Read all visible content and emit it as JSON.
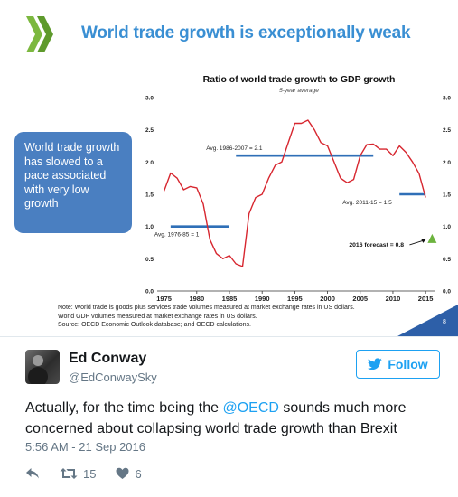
{
  "slide": {
    "title": "World trade growth is exceptionally weak",
    "callout": "World trade growth has slowed to a pace associated with very low growth",
    "notes": [
      "Note: World trade is goods plus services trade volumes measured at market exchange rates in US dollars.",
      "World GDP volumes measured at market exchange rates in US dollars.",
      "Source: OECD Economic Outlook database; and OECD calculations."
    ],
    "page_number": "8",
    "colors": {
      "title": "#3a8fd3",
      "callout": "#4a7fc1",
      "logo": "#7cb83f",
      "line": "#d7262f",
      "avg": "#2f6fb7",
      "forecast": "#6cb33e"
    }
  },
  "chart_data": {
    "type": "line",
    "title": "Ratio of world trade growth to GDP growth",
    "subtitle": "5-year average",
    "x_ticks": [
      "1975",
      "1980",
      "1985",
      "1990",
      "1995",
      "2000",
      "2005",
      "2010",
      "2015"
    ],
    "y_ticks_left": [
      "0.0",
      "0.5",
      "1.0",
      "1.5",
      "2.0",
      "2.5",
      "3.0"
    ],
    "y_ticks_right": [
      "0.0",
      "0.5",
      "1.0",
      "1.5",
      "2.0",
      "2.5",
      "3.0"
    ],
    "xlim": [
      1974.5,
      2016.5
    ],
    "ylim": [
      0,
      3.0
    ],
    "grid": false,
    "series": [
      {
        "name": "",
        "x": [
          1975,
          1976,
          1977,
          1978,
          1979,
          1980,
          1981,
          1982,
          1983,
          1984,
          1985,
          1986,
          1987,
          1988,
          1989,
          1990,
          1991,
          1992,
          1993,
          1994,
          1995,
          1996,
          1997,
          1998,
          1999,
          2000,
          2001,
          2002,
          2003,
          2004,
          2005,
          2006,
          2007,
          2008,
          2009,
          2010,
          2011,
          2012,
          2013,
          2014,
          2015
        ],
        "y": [
          1.55,
          1.83,
          1.75,
          1.57,
          1.62,
          1.6,
          1.35,
          0.8,
          0.58,
          0.5,
          0.55,
          0.42,
          0.38,
          1.2,
          1.45,
          1.5,
          1.75,
          1.95,
          2.0,
          2.3,
          2.6,
          2.6,
          2.65,
          2.5,
          2.3,
          2.25,
          2.0,
          1.75,
          1.68,
          1.73,
          2.1,
          2.27,
          2.28,
          2.2,
          2.2,
          2.1,
          2.25,
          2.15,
          2.0,
          1.82,
          1.45
        ]
      }
    ],
    "averages": [
      {
        "label": "Avg. 1976-85 = 1",
        "from": 1976,
        "to": 1985,
        "value": 1.0
      },
      {
        "label": "Avg. 1986-2007 = 2.1",
        "from": 1986,
        "to": 2007,
        "value": 2.1
      },
      {
        "label": "Avg. 2011-15 = 1.5",
        "from": 2011,
        "to": 2015,
        "value": 1.5
      }
    ],
    "forecast": {
      "label": "2016 forecast = 0.8",
      "x": 2016,
      "y": 0.8
    }
  },
  "tweet": {
    "display_name": "Ed Conway",
    "handle": "@EdConwaySky",
    "follow_label": "Follow",
    "text_before": "Actually, for the time being the ",
    "mention": "@OECD",
    "text_after": " sounds much more concerned about collapsing world trade growth than Brexit",
    "timestamp": "5:56 AM - 21 Sep 2016",
    "retweets": "15",
    "likes": "6"
  }
}
